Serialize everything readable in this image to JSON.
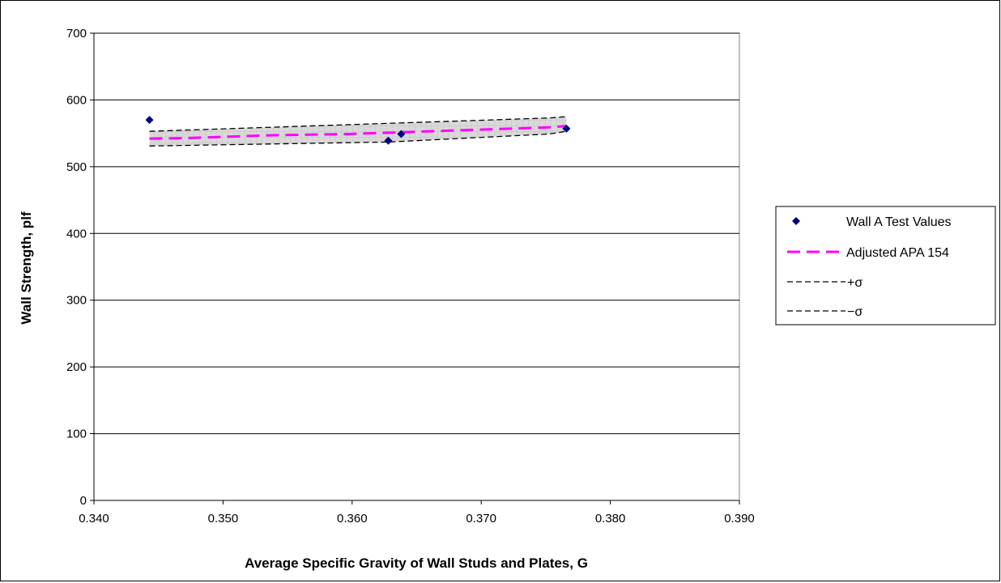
{
  "chart_data": {
    "type": "scatter",
    "xlabel": "Average Specific Gravity of Wall Studs and Plates, G",
    "ylabel": "Wall Strength, plf",
    "xlim": [
      0.34,
      0.39
    ],
    "ylim": [
      0,
      700
    ],
    "x_ticks": [
      "0.340",
      "0.350",
      "0.360",
      "0.370",
      "0.380",
      "0.390"
    ],
    "y_ticks": [
      "0",
      "100",
      "200",
      "300",
      "400",
      "500",
      "600",
      "700"
    ],
    "grid": "horizontal",
    "legend_position": "right",
    "series": [
      {
        "name": "Wall A Test Values",
        "kind": "markers",
        "marker": "diamond",
        "color": "#000080",
        "x": [
          0.3443,
          0.3628,
          0.3638,
          0.3766
        ],
        "y": [
          570,
          539,
          549,
          557
        ]
      },
      {
        "name": "Adjusted APA 154",
        "kind": "line",
        "color": "#ff00ff",
        "dash": "long",
        "x": [
          0.3443,
          0.3474,
          0.3505,
          0.3536,
          0.3567,
          0.3598,
          0.3629,
          0.366,
          0.3691,
          0.3722,
          0.3753,
          0.3766
        ],
        "y": [
          542,
          543,
          545,
          547,
          548,
          549,
          551,
          553,
          555,
          557,
          559,
          561
        ]
      },
      {
        "name": "+σ",
        "kind": "line",
        "color": "#000000",
        "dash": "short",
        "x": [
          0.3443,
          0.3474,
          0.3505,
          0.3536,
          0.3567,
          0.3598,
          0.3629,
          0.366,
          0.3691,
          0.3722,
          0.3753,
          0.3766
        ],
        "y": [
          553,
          555,
          557,
          559,
          561,
          563,
          565,
          567,
          569,
          571,
          573,
          575
        ]
      },
      {
        "name": "−σ",
        "kind": "line",
        "color": "#000000",
        "dash": "short",
        "x": [
          0.3443,
          0.3474,
          0.3505,
          0.3536,
          0.3567,
          0.3598,
          0.3629,
          0.366,
          0.3691,
          0.3722,
          0.3753,
          0.3766
        ],
        "y": [
          531,
          532,
          533,
          534,
          535,
          536,
          537,
          540,
          543,
          546,
          549,
          553
        ]
      }
    ]
  }
}
